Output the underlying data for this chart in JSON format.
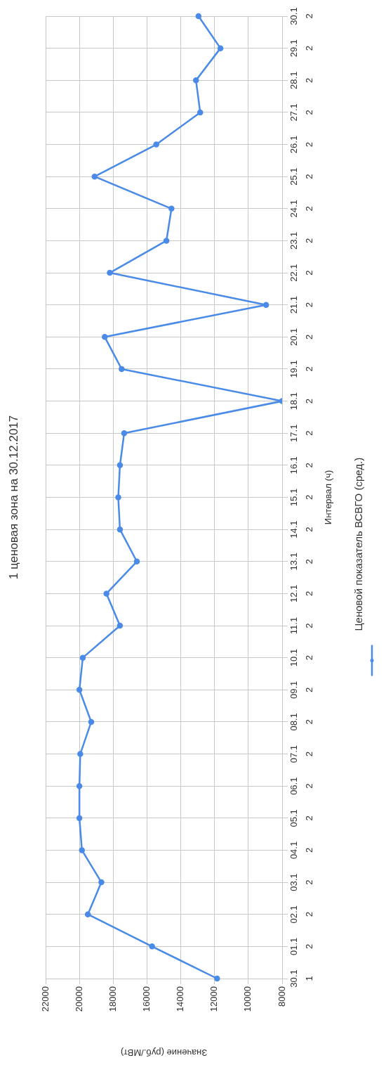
{
  "chart_data": {
    "type": "line",
    "orientation": "horizontal",
    "title": "1 ценовая зона на 30.12.2017",
    "xlabel": "Значение (руб./МВт)",
    "ylabel": "Интервал (ч)",
    "categories": [
      "30.1 2",
      "29.1 2",
      "28.1 2",
      "27.1 2",
      "26.1 2",
      "25.1 2",
      "24.1 2",
      "23.1 2",
      "22.1 2",
      "21.1 2",
      "20.1 2",
      "19.1 2",
      "18.1 2",
      "17.1 2",
      "16.1 2",
      "15.1 2",
      "14.1 2",
      "13.1 2",
      "12.1 2",
      "11.1 2",
      "10.1 2",
      "09.1 2",
      "08.1 2",
      "07.1 2",
      "06.1 2",
      "05.1 2",
      "04.1 2",
      "03.1 2",
      "02.1 2",
      "01.1 2",
      "30.1 1"
    ],
    "series": [
      {
        "name": "Ценовой показатель ВСВГО (сред.)",
        "color": "#4a8ae8",
        "values": [
          12950,
          11650,
          13100,
          12850,
          15450,
          19100,
          14550,
          14850,
          18200,
          8950,
          18500,
          17500,
          8000,
          17350,
          17600,
          17700,
          17600,
          16600,
          18400,
          17600,
          19800,
          20000,
          19300,
          19950,
          20000,
          20000,
          19850,
          18700,
          19500,
          15700,
          11850
        ]
      }
    ],
    "xlim": [
      22000,
      8000
    ],
    "xticks": [
      22000,
      20000,
      18000,
      16000,
      14000,
      12000,
      10000,
      8000
    ],
    "grid": true,
    "legend": "right",
    "marker": "circle",
    "line_style": "solid"
  }
}
